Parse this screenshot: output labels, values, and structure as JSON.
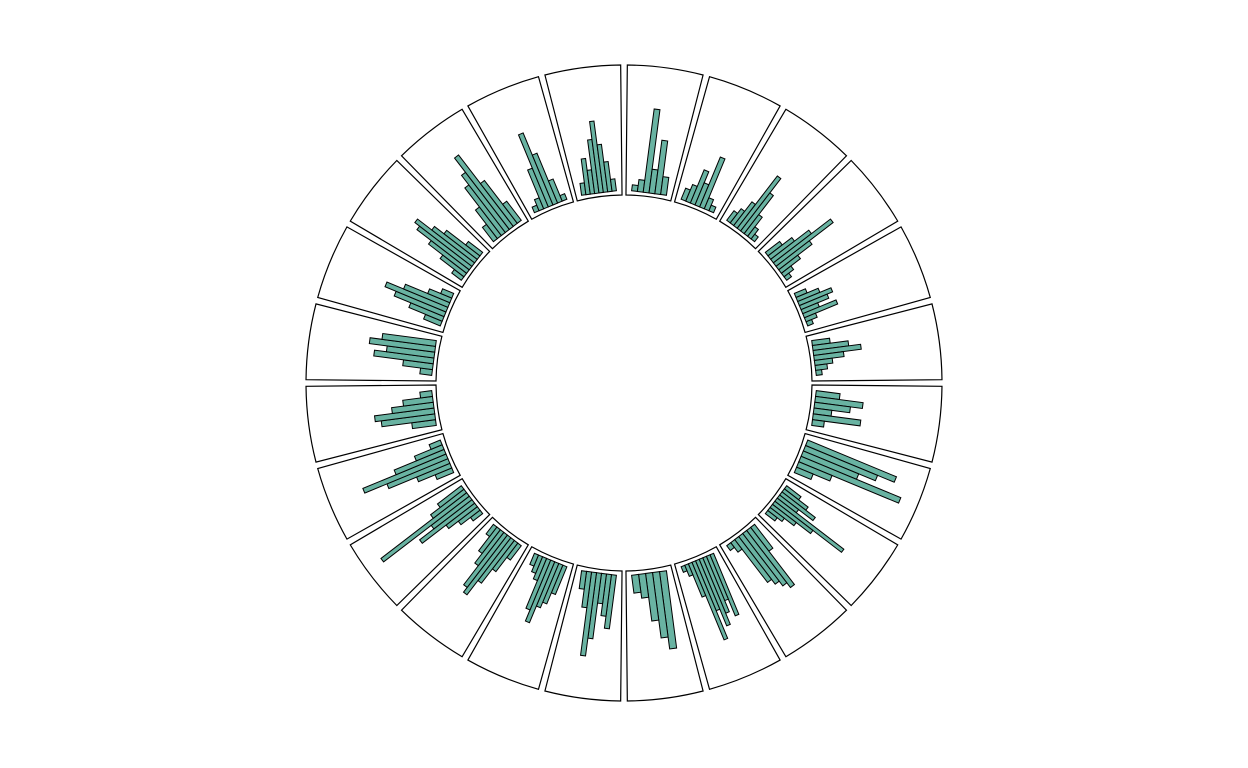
{
  "chart_data": {
    "type": "radial-histogram-grid",
    "title": "",
    "panel_count": 24,
    "bar_color": "#69b3a2",
    "stroke_color": "#000000",
    "value_max": 1.0,
    "grid": false,
    "legend": "none",
    "panels": [
      [
        0.05,
        0.1,
        0.7,
        0.2,
        0.45,
        0.15
      ],
      [
        0.1,
        0.15,
        0.3,
        0.2,
        0.45,
        0.1,
        0.05
      ],
      [
        0.1,
        0.15,
        0.25,
        0.55,
        0.4,
        0.2,
        0.1,
        0.05
      ],
      [
        0.15,
        0.25,
        0.4,
        0.6,
        0.35,
        0.2,
        0.1,
        0.05
      ],
      [
        0.1,
        0.2,
        0.3,
        0.25,
        0.15,
        0.3,
        0.1,
        0.05
      ],
      [
        0.15,
        0.3,
        0.4,
        0.25,
        0.15,
        0.1,
        0.05
      ],
      [
        0.2,
        0.4,
        0.3,
        0.15,
        0.4,
        0.1
      ],
      [
        0.8,
        0.65,
        0.5,
        0.9,
        0.3,
        0.15
      ],
      [
        0.15,
        0.25,
        0.35,
        0.2,
        0.7,
        0.4,
        0.25,
        0.15,
        0.1
      ],
      [
        0.25,
        0.6,
        0.55,
        0.5,
        0.45,
        0.1,
        0.05
      ],
      [
        0.55,
        0.4,
        0.5,
        0.6,
        0.45,
        0.7,
        0.3,
        0.1,
        0.05
      ],
      [
        0.65,
        0.55,
        0.4,
        0.2,
        0.15
      ],
      [
        0.45,
        0.35,
        0.25,
        0.55,
        0.7,
        0.3,
        0.15
      ],
      [
        0.25,
        0.35,
        0.4,
        0.55,
        0.45,
        0.2,
        0.15,
        0.1
      ],
      [
        0.15,
        0.3,
        0.45,
        0.6,
        0.55,
        0.35,
        0.25,
        0.1
      ],
      [
        0.1,
        0.2,
        0.3,
        0.55,
        0.4,
        0.9,
        0.35,
        0.25
      ],
      [
        0.15,
        0.3,
        0.55,
        0.75,
        0.45,
        0.25,
        0.1
      ],
      [
        0.2,
        0.45,
        0.5,
        0.35,
        0.25,
        0.1
      ],
      [
        0.1,
        0.25,
        0.5,
        0.4,
        0.55,
        0.45
      ],
      [
        0.15,
        0.3,
        0.45,
        0.55,
        0.4,
        0.2,
        0.1
      ],
      [
        0.1,
        0.25,
        0.4,
        0.55,
        0.6,
        0.45,
        0.35,
        0.15
      ],
      [
        0.15,
        0.3,
        0.5,
        0.6,
        0.75,
        0.45,
        0.2
      ],
      [
        0.05,
        0.1,
        0.35,
        0.65,
        0.45,
        0.2,
        0.05
      ],
      [
        0.1,
        0.3,
        0.2,
        0.45,
        0.6,
        0.4,
        0.25,
        0.1
      ]
    ]
  }
}
